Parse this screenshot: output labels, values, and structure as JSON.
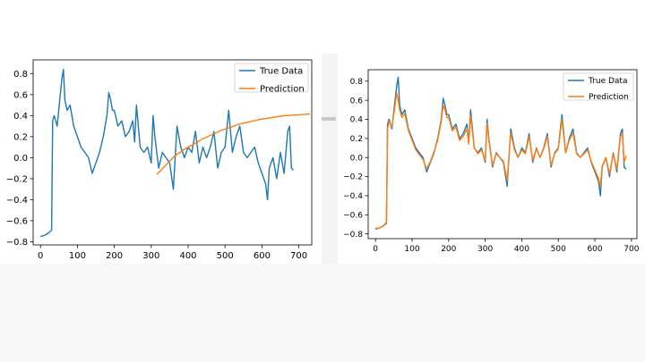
{
  "colors": {
    "true_data": "#1f77b4",
    "prediction": "#ff7f0e",
    "axes": "#000000"
  },
  "chart_data": [
    {
      "type": "line",
      "title": "",
      "xlabel": "",
      "ylabel": "",
      "xlim": [
        -20,
        735
      ],
      "ylim": [
        -0.83,
        0.93
      ],
      "xticks": [
        0,
        100,
        200,
        300,
        400,
        500,
        600,
        700
      ],
      "xtick_labels": [
        "0",
        "100",
        "200",
        "300",
        "400",
        "500",
        "600",
        "700"
      ],
      "yticks": [
        -0.8,
        -0.6,
        -0.4,
        -0.2,
        0.0,
        0.2,
        0.4,
        0.6,
        0.8
      ],
      "ytick_labels": [
        "−0.8",
        "−0.6",
        "−0.4",
        "−0.2",
        "0.0",
        "0.2",
        "0.4",
        "0.6",
        "0.8"
      ],
      "legend": {
        "position": "top-right",
        "entries": [
          "True Data",
          "Prediction"
        ]
      },
      "series": [
        {
          "name": "True Data",
          "x": [
            0,
            10,
            20,
            30,
            33,
            37,
            45,
            52,
            58,
            62,
            66,
            72,
            80,
            90,
            100,
            110,
            120,
            130,
            140,
            150,
            160,
            170,
            175,
            180,
            185,
            190,
            195,
            200,
            210,
            220,
            230,
            240,
            250,
            255,
            260,
            270,
            280,
            290,
            300,
            305,
            310,
            320,
            330,
            340,
            350,
            360,
            370,
            380,
            390,
            400,
            410,
            420,
            430,
            440,
            450,
            460,
            470,
            480,
            490,
            500,
            510,
            520,
            530,
            540,
            550,
            560,
            570,
            580,
            590,
            600,
            610,
            615,
            620,
            630,
            640,
            650,
            660,
            670,
            675,
            680,
            685
          ],
          "values": [
            -0.75,
            -0.74,
            -0.72,
            -0.69,
            0.35,
            0.4,
            0.3,
            0.55,
            0.75,
            0.84,
            0.55,
            0.45,
            0.5,
            0.3,
            0.2,
            0.1,
            0.05,
            0.0,
            -0.15,
            -0.05,
            0.05,
            0.2,
            0.3,
            0.4,
            0.62,
            0.55,
            0.45,
            0.45,
            0.3,
            0.35,
            0.2,
            0.25,
            0.35,
            0.15,
            0.5,
            0.1,
            0.05,
            0.1,
            -0.05,
            0.4,
            0.2,
            -0.1,
            0.05,
            0.0,
            -0.05,
            -0.3,
            0.3,
            0.1,
            0.0,
            0.1,
            0.05,
            0.25,
            -0.05,
            0.1,
            0.0,
            0.1,
            0.25,
            -0.1,
            0.05,
            0.1,
            0.45,
            0.05,
            0.2,
            0.3,
            0.05,
            0.0,
            0.05,
            0.1,
            -0.05,
            -0.15,
            -0.25,
            -0.4,
            -0.1,
            0.0,
            -0.2,
            0.05,
            -0.15,
            0.25,
            0.3,
            -0.1,
            -0.12
          ]
        },
        {
          "name": "Prediction",
          "x": [
            315,
            340,
            365,
            390,
            415,
            440,
            465,
            490,
            515,
            540,
            565,
            590,
            615,
            640,
            665,
            690,
            710,
            730
          ],
          "values": [
            -0.16,
            -0.07,
            0.02,
            0.08,
            0.13,
            0.18,
            0.22,
            0.26,
            0.29,
            0.32,
            0.34,
            0.36,
            0.375,
            0.39,
            0.4,
            0.405,
            0.41,
            0.415
          ]
        }
      ]
    },
    {
      "type": "line",
      "title": "",
      "xlabel": "",
      "ylabel": "",
      "xlim": [
        -20,
        715
      ],
      "ylim": [
        -0.85,
        0.92
      ],
      "xticks": [
        0,
        100,
        200,
        300,
        400,
        500,
        600,
        700
      ],
      "xtick_labels": [
        "0",
        "100",
        "200",
        "300",
        "400",
        "500",
        "600",
        "700"
      ],
      "yticks": [
        -0.8,
        -0.6,
        -0.4,
        -0.2,
        0.0,
        0.2,
        0.4,
        0.6,
        0.8
      ],
      "ytick_labels": [
        "−0.8",
        "−0.6",
        "−0.4",
        "−0.2",
        "0.0",
        "0.2",
        "0.4",
        "0.6",
        "0.8"
      ],
      "legend": {
        "position": "top-right",
        "entries": [
          "True Data",
          "Prediction"
        ]
      },
      "series": [
        {
          "name": "True Data",
          "x": [
            0,
            10,
            20,
            30,
            33,
            37,
            45,
            52,
            58,
            62,
            66,
            72,
            80,
            90,
            100,
            110,
            120,
            130,
            140,
            150,
            160,
            170,
            175,
            180,
            185,
            190,
            195,
            200,
            210,
            220,
            230,
            240,
            250,
            255,
            260,
            270,
            280,
            290,
            300,
            305,
            310,
            320,
            330,
            340,
            350,
            360,
            370,
            380,
            390,
            400,
            410,
            420,
            430,
            440,
            450,
            460,
            470,
            480,
            490,
            500,
            510,
            520,
            530,
            540,
            550,
            560,
            570,
            580,
            590,
            600,
            610,
            615,
            620,
            630,
            640,
            650,
            660,
            670,
            675,
            680,
            685
          ],
          "values": [
            -0.75,
            -0.74,
            -0.72,
            -0.69,
            0.35,
            0.4,
            0.3,
            0.55,
            0.75,
            0.84,
            0.55,
            0.45,
            0.5,
            0.3,
            0.2,
            0.1,
            0.05,
            0.0,
            -0.15,
            -0.05,
            0.05,
            0.2,
            0.3,
            0.4,
            0.62,
            0.55,
            0.45,
            0.45,
            0.3,
            0.35,
            0.2,
            0.25,
            0.35,
            0.15,
            0.5,
            0.1,
            0.05,
            0.1,
            -0.05,
            0.4,
            0.2,
            -0.1,
            0.05,
            0.0,
            -0.05,
            -0.3,
            0.3,
            0.1,
            0.0,
            0.1,
            0.05,
            0.25,
            -0.05,
            0.1,
            0.0,
            0.1,
            0.25,
            -0.1,
            0.05,
            0.1,
            0.45,
            0.05,
            0.2,
            0.3,
            0.05,
            0.0,
            0.05,
            0.1,
            -0.05,
            -0.15,
            -0.25,
            -0.4,
            -0.1,
            0.0,
            -0.2,
            0.05,
            -0.15,
            0.25,
            0.3,
            -0.1,
            -0.12
          ]
        },
        {
          "name": "Prediction",
          "x": [
            0,
            10,
            20,
            30,
            33,
            37,
            45,
            52,
            58,
            62,
            66,
            72,
            80,
            90,
            100,
            110,
            120,
            130,
            140,
            150,
            160,
            170,
            175,
            180,
            185,
            190,
            195,
            200,
            210,
            220,
            230,
            240,
            250,
            255,
            260,
            270,
            280,
            290,
            300,
            305,
            310,
            320,
            330,
            340,
            350,
            360,
            370,
            380,
            390,
            400,
            410,
            420,
            430,
            440,
            450,
            460,
            470,
            480,
            490,
            500,
            510,
            520,
            530,
            540,
            550,
            560,
            570,
            580,
            590,
            600,
            610,
            615,
            620,
            630,
            640,
            650,
            660,
            670,
            675,
            680,
            685
          ],
          "values": [
            -0.74,
            -0.74,
            -0.72,
            -0.68,
            0.3,
            0.38,
            0.32,
            0.5,
            0.68,
            0.6,
            0.5,
            0.42,
            0.46,
            0.28,
            0.18,
            0.08,
            0.03,
            -0.02,
            -0.12,
            -0.04,
            0.06,
            0.18,
            0.28,
            0.38,
            0.55,
            0.5,
            0.42,
            0.42,
            0.28,
            0.32,
            0.18,
            0.22,
            0.3,
            0.14,
            0.44,
            0.1,
            0.04,
            0.08,
            -0.03,
            0.36,
            0.18,
            -0.08,
            0.04,
            0.0,
            -0.04,
            -0.24,
            0.26,
            0.08,
            0.0,
            0.08,
            0.04,
            0.22,
            -0.03,
            0.09,
            0.0,
            0.09,
            0.22,
            -0.08,
            0.04,
            0.09,
            0.4,
            0.05,
            0.18,
            0.26,
            0.04,
            0.0,
            0.04,
            0.08,
            -0.04,
            -0.13,
            -0.22,
            -0.3,
            -0.09,
            0.0,
            -0.17,
            0.04,
            -0.12,
            0.22,
            0.25,
            -0.05,
            0.02
          ]
        }
      ]
    }
  ]
}
